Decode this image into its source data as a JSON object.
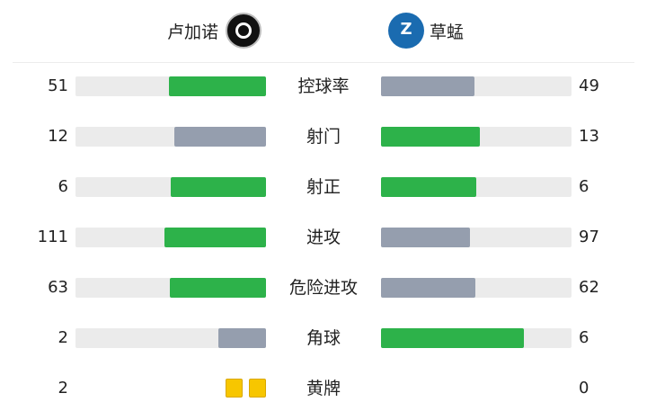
{
  "home": {
    "name": "卢加诺",
    "logo_icon": "lugano-crest"
  },
  "away": {
    "name": "草蜢",
    "logo_icon": "grasshoppers-crest"
  },
  "colors": {
    "lead": "#2db24a",
    "trail": "#959eae",
    "track": "#ebebeb",
    "card": "#f7c600"
  },
  "stats": [
    {
      "label": "控球率",
      "home": 51,
      "away": 49
    },
    {
      "label": "射门",
      "home": 12,
      "away": 13
    },
    {
      "label": "射正",
      "home": 6,
      "away": 6
    },
    {
      "label": "进攻",
      "home": 111,
      "away": 97
    },
    {
      "label": "危险进攻",
      "home": 63,
      "away": 62
    },
    {
      "label": "角球",
      "home": 2,
      "away": 6
    }
  ],
  "yellow": {
    "label": "黄牌",
    "home": 2,
    "away": 0
  }
}
